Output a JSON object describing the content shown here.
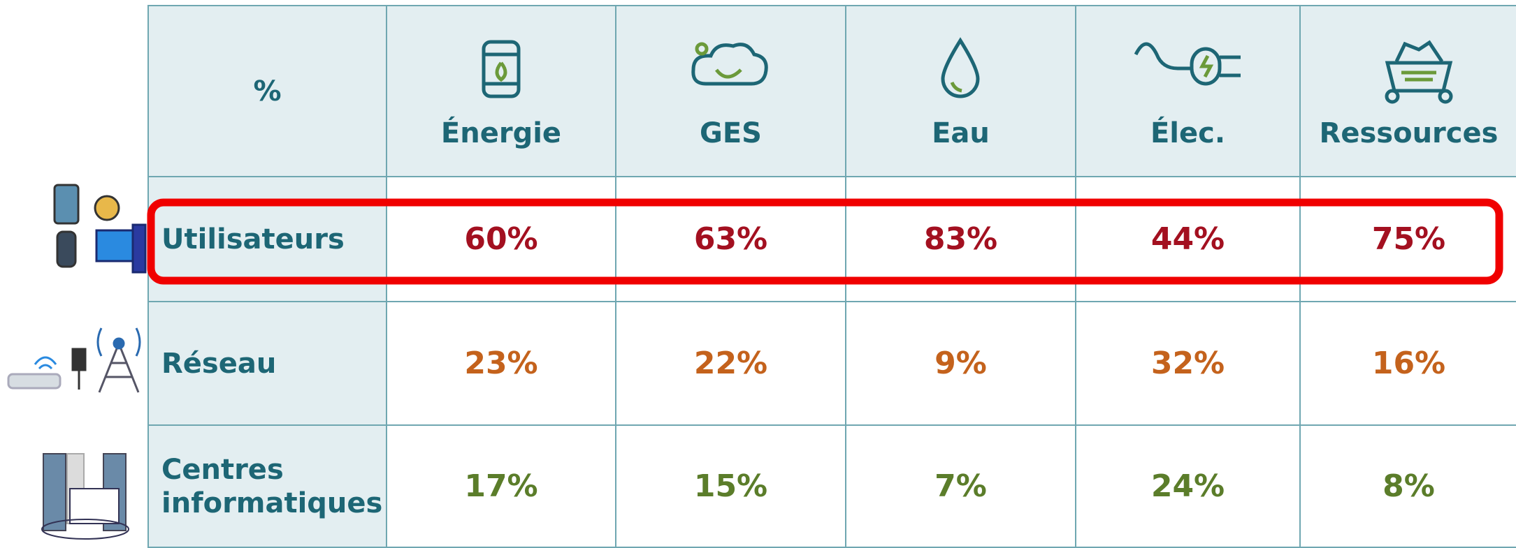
{
  "table": {
    "header": [
      "%",
      "Énergie",
      "GES",
      "Eau",
      "Élec.",
      "Ressources"
    ],
    "rows": [
      [
        "Utilisateurs",
        "60%",
        "63%",
        "83%",
        "44%",
        "75%"
      ],
      [
        "Réseau",
        "23%",
        "22%",
        "9%",
        "32%",
        "16%"
      ],
      [
        "Centres informatiques",
        "17%",
        "15%",
        "7%",
        "24%",
        "8%"
      ]
    ]
  }
}
